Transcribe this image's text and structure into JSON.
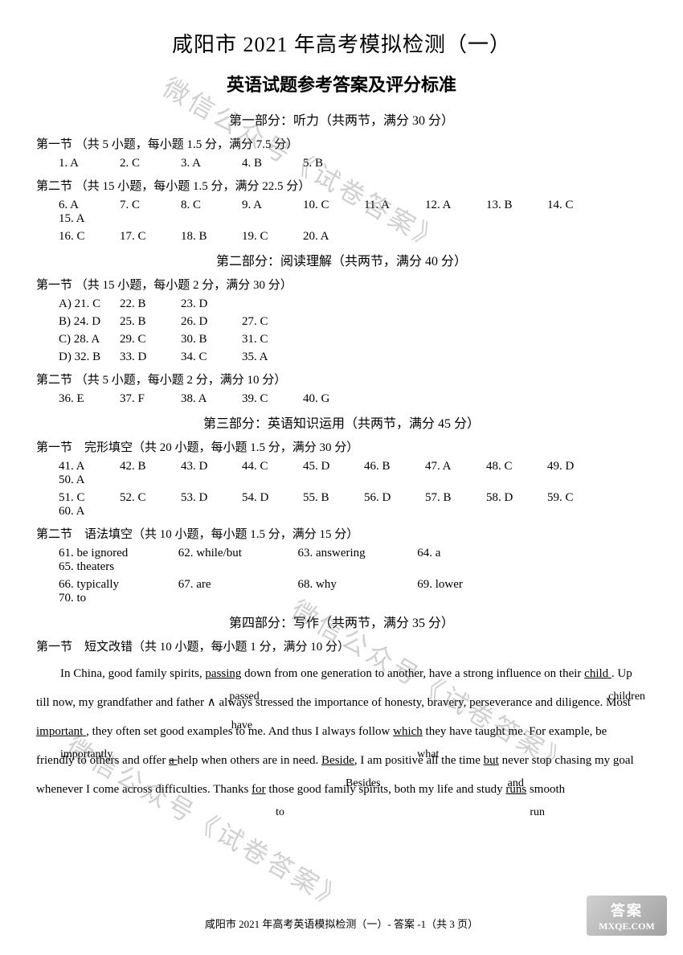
{
  "mainTitle": "咸阳市 2021 年高考模拟检测（一）",
  "subTitle": "英语试题参考答案及评分标准",
  "part1": {
    "title": "第一部分：听力（共两节，满分 30 分）",
    "sec1": {
      "label": "第一节 （共 5 小题，每小题 1.5 分，满分 7.5 分）",
      "answers": [
        "1. A",
        "2. C",
        "3. A",
        "4. B",
        "5. B"
      ]
    },
    "sec2": {
      "label": "第二节 （共 15 小题，每小题 1.5 分，满分 22.5 分）",
      "row1": [
        "6. A",
        "7. C",
        "8. C",
        "9. A",
        "10. C",
        "11. A",
        "12. A",
        "13. B",
        "14. C",
        "15. A"
      ],
      "row2": [
        "16. C",
        "17. C",
        "18. B",
        "19. C",
        "20. A"
      ]
    }
  },
  "part2": {
    "title": "第二部分：阅读理解（共两节，满分 40 分）",
    "sec1": {
      "label": "第一节 （共 15 小题，每小题 2 分，满分 30 分）",
      "rowA": [
        "A) 21. C",
        "22. B",
        "23. D"
      ],
      "rowB": [
        "B) 24. D",
        "25. B",
        "26. D",
        "27. C"
      ],
      "rowC": [
        "C) 28. A",
        "29. C",
        "30. B",
        "31. C"
      ],
      "rowD": [
        "D) 32. B",
        "33. D",
        "34. C",
        "35. A"
      ]
    },
    "sec2": {
      "label": "第二节 （共 5 小题，每小题 2 分，满分 10 分）",
      "answers": [
        "36. E",
        "37. F",
        "38. A",
        "39. C",
        "40. G"
      ]
    }
  },
  "part3": {
    "title": "第三部分：英语知识运用（共两节，满分 45 分）",
    "sec1": {
      "label": "第一节　完形填空（共 20 小题，每小题 1.5 分，满分 30 分）",
      "row1": [
        "41. A",
        "42. B",
        "43. D",
        "44. C",
        "45. D",
        "46. B",
        "47. A",
        "48. C",
        "49. D",
        "50. A"
      ],
      "row2": [
        "51. C",
        "52. C",
        "53. D",
        "54. D",
        "55. B",
        "56. D",
        "57. B",
        "58. D",
        "59. C",
        "60. A"
      ]
    },
    "sec2": {
      "label": "第二节　语法填空（共 10 小题，每小题 1.5 分，满分 15 分）",
      "row1": [
        "61. be ignored",
        "62. while/but",
        "63. answering",
        "64. a",
        "65. theaters"
      ],
      "row2": [
        "66. typically",
        "67. are",
        "68. why",
        "69. lower",
        "70. to"
      ]
    }
  },
  "part4": {
    "title": "第四部分：写作（共两节，满分 35 分）",
    "sec1": {
      "label": "第一节　短文改错（共 10 小题，每小题 1 分，满分 10 分）"
    }
  },
  "essay": {
    "t1": "In China, good family spirits, ",
    "c1": "passing",
    "c1b": "passed",
    "t2": " down from one generation to another, have a strong influence on their ",
    "c2": " child ",
    "c2b": "children",
    "t3": ". Up till now, my grandfather and father ",
    "ins1": "∧",
    "ins1b": "have",
    "t4": " always stressed the importance of honesty, bravery, perseverance and diligence. Most ",
    "c3": " important ",
    "c3b": "importantly",
    "t5": ", they often set good examples to me. And thus I always follow ",
    "c4": "which",
    "c4b": "what",
    "t6": " they have taught me. For example, be friendly to others and offer ",
    "c5": " a ",
    "c5strike": "a",
    "t7": " help when others are in need. ",
    "c6": "Beside",
    "c6b": "Besides",
    "t8": ", I am positive all the time ",
    "c7": "but",
    "c7b": "and",
    "t9": " never stop chasing my goal whenever I come across difficulties. Thanks ",
    "c8": "for",
    "c8b": "to",
    "t10": " those good family spirits, both my life and study ",
    "c9": "runs",
    "c9b": "run",
    "t11": " smooth"
  },
  "footer": "咸阳市 2021 年高考英语模拟检测（一）- 答案 -1（共 3 页）",
  "watermark": "微信公众号《试卷答案》",
  "logo": {
    "top": "答案",
    "bottom": "MXQE.COM"
  }
}
